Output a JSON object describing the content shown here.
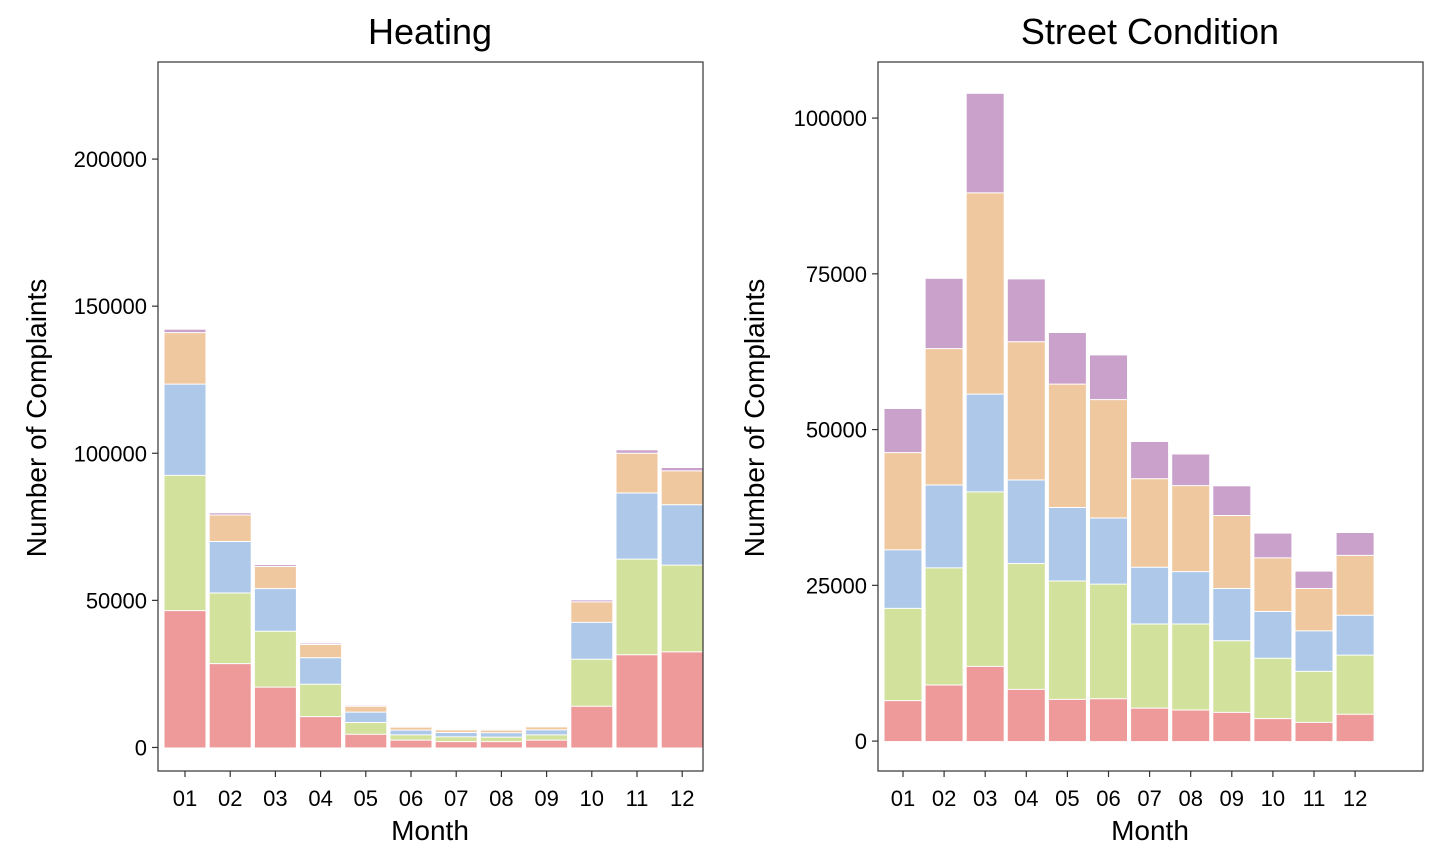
{
  "chart_data": [
    {
      "type": "bar",
      "stacked": true,
      "title": "Heating",
      "xlabel": "Month",
      "ylabel": "Number of Complaints",
      "categories": [
        "01",
        "02",
        "03",
        "04",
        "05",
        "06",
        "07",
        "08",
        "09",
        "10",
        "11",
        "12"
      ],
      "ylim": [
        -8000,
        233000
      ],
      "yticks": [
        0,
        50000,
        100000,
        150000,
        200000
      ],
      "grid": false,
      "legend": "none",
      "series": [
        {
          "color": "#EE9A9B",
          "values": [
            46500,
            28500,
            20500,
            10500,
            4500,
            2500,
            2000,
            2000,
            2500,
            14000,
            31500,
            32500
          ]
        },
        {
          "color": "#D2E19B",
          "values": [
            46000,
            24000,
            19000,
            11000,
            4000,
            1800,
            1600,
            1500,
            1800,
            16000,
            32500,
            29500
          ]
        },
        {
          "color": "#ADC8E8",
          "values": [
            31000,
            17500,
            14500,
            9000,
            3500,
            1600,
            1500,
            1500,
            1700,
            12500,
            22500,
            20500
          ]
        },
        {
          "color": "#F0C8A0",
          "values": [
            17500,
            9000,
            7500,
            4500,
            2000,
            1000,
            900,
            900,
            1000,
            7000,
            13500,
            11500
          ]
        },
        {
          "color": "#C9A1CB",
          "values": [
            1000,
            600,
            500,
            300,
            200,
            100,
            100,
            100,
            100,
            500,
            1000,
            1000
          ]
        }
      ]
    },
    {
      "type": "bar",
      "stacked": true,
      "title": "Street Condition",
      "xlabel": "Month",
      "ylabel": "Number of Complaints",
      "categories": [
        "01",
        "02",
        "03",
        "04",
        "05",
        "06",
        "07",
        "08",
        "09",
        "10",
        "11",
        "12"
      ],
      "ylim": [
        -4800,
        109000
      ],
      "yticks": [
        0,
        25000,
        50000,
        75000,
        100000
      ],
      "grid": false,
      "legend": "none",
      "series": [
        {
          "color": "#EE9A9B",
          "values": [
            6500,
            9000,
            12000,
            8300,
            6700,
            6800,
            5300,
            5000,
            4600,
            3600,
            3000,
            4300
          ]
        },
        {
          "color": "#D2E19B",
          "values": [
            14800,
            18800,
            28000,
            20200,
            19000,
            18400,
            13500,
            13800,
            11500,
            9700,
            8200,
            9500
          ]
        },
        {
          "color": "#ADC8E8",
          "values": [
            9400,
            13300,
            15700,
            13400,
            11800,
            10600,
            9100,
            8400,
            8400,
            7500,
            6500,
            6400
          ]
        },
        {
          "color": "#F0C8A0",
          "values": [
            15600,
            21900,
            32300,
            22200,
            19800,
            19000,
            14200,
            13800,
            11700,
            8600,
            6800,
            9600
          ]
        },
        {
          "color": "#C9A1CB",
          "values": [
            7000,
            11200,
            15900,
            10000,
            8200,
            7100,
            5900,
            5000,
            4700,
            3900,
            2700,
            3600
          ]
        }
      ]
    }
  ]
}
